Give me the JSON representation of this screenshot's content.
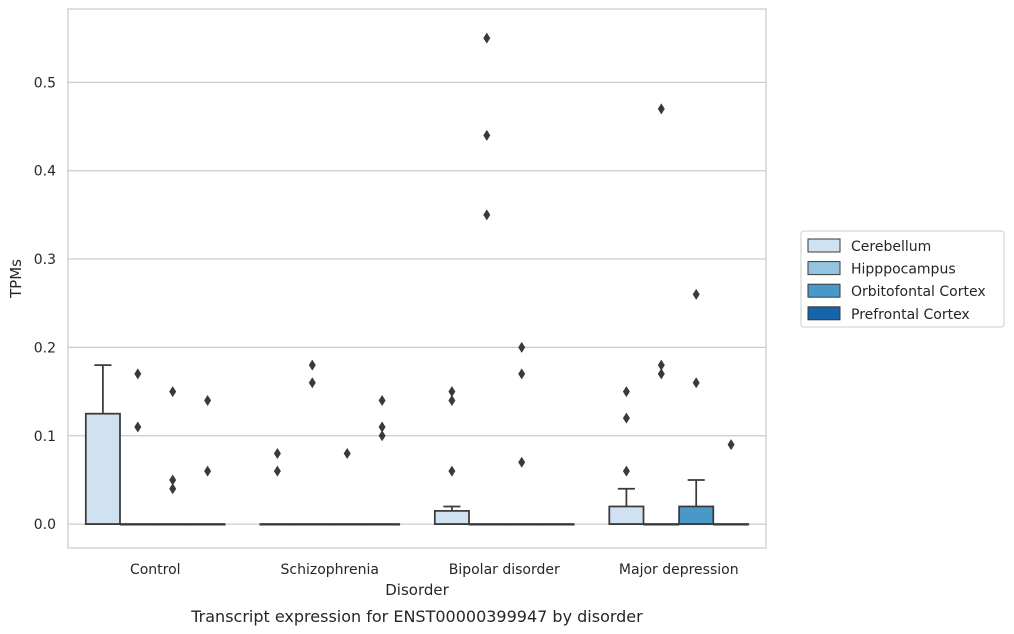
{
  "chart_data": {
    "type": "box",
    "xlabel": "Disorder",
    "ylabel": "TPMs",
    "caption": "Transcript expression for ENST00000399947 by disorder",
    "categories": [
      "Control",
      "Schizophrenia",
      "Bipolar disorder",
      "Major depression"
    ],
    "yticks": [
      "0.0",
      "0.1",
      "0.2",
      "0.3",
      "0.4",
      "0.5"
    ],
    "ylim": [
      -0.027,
      0.583
    ],
    "grid": true,
    "legend_position": "right",
    "series": [
      {
        "name": "Cerebellum",
        "color": "#d0e1f2",
        "boxes": [
          {
            "q1": 0,
            "median": 0,
            "q3": 0.125,
            "whisker_low": 0,
            "whisker_high": 0.18,
            "outliers": []
          },
          {
            "q1": 0,
            "median": 0,
            "q3": 0,
            "whisker_low": 0,
            "whisker_high": 0,
            "outliers": [
              0.06,
              0.08
            ]
          },
          {
            "q1": 0,
            "median": 0,
            "q3": 0.015,
            "whisker_low": 0,
            "whisker_high": 0.02,
            "outliers": [
              0.06,
              0.14,
              0.15
            ]
          },
          {
            "q1": 0,
            "median": 0,
            "q3": 0.02,
            "whisker_low": 0,
            "whisker_high": 0.04,
            "outliers": [
              0.06,
              0.12,
              0.15
            ]
          }
        ]
      },
      {
        "name": "Hipppocampus",
        "color": "#94c4df",
        "boxes": [
          {
            "q1": 0,
            "median": 0,
            "q3": 0,
            "whisker_low": 0,
            "whisker_high": 0,
            "outliers": [
              0.11,
              0.17
            ]
          },
          {
            "q1": 0,
            "median": 0,
            "q3": 0,
            "whisker_low": 0,
            "whisker_high": 0,
            "outliers": [
              0.16,
              0.18
            ]
          },
          {
            "q1": 0,
            "median": 0,
            "q3": 0,
            "whisker_low": 0,
            "whisker_high": 0,
            "outliers": [
              0.35,
              0.44,
              0.55
            ]
          },
          {
            "q1": 0,
            "median": 0,
            "q3": 0,
            "whisker_low": 0,
            "whisker_high": 0,
            "outliers": [
              0.17,
              0.18,
              0.47
            ]
          }
        ]
      },
      {
        "name": "Orbitofontal Cortex",
        "color": "#4a98c9",
        "boxes": [
          {
            "q1": 0,
            "median": 0,
            "q3": 0,
            "whisker_low": 0,
            "whisker_high": 0,
            "outliers": [
              0.04,
              0.05,
              0.15
            ]
          },
          {
            "q1": 0,
            "median": 0,
            "q3": 0,
            "whisker_low": 0,
            "whisker_high": 0,
            "outliers": [
              0.08
            ]
          },
          {
            "q1": 0,
            "median": 0,
            "q3": 0,
            "whisker_low": 0,
            "whisker_high": 0,
            "outliers": [
              0.07,
              0.17,
              0.2
            ]
          },
          {
            "q1": 0,
            "median": 0,
            "q3": 0.02,
            "whisker_low": 0,
            "whisker_high": 0.05,
            "outliers": [
              0.16,
              0.26
            ]
          }
        ]
      },
      {
        "name": "Prefrontal Cortex",
        "color": "#1764ab",
        "boxes": [
          {
            "q1": 0,
            "median": 0,
            "q3": 0,
            "whisker_low": 0,
            "whisker_high": 0,
            "outliers": [
              0.06,
              0.14
            ]
          },
          {
            "q1": 0,
            "median": 0,
            "q3": 0,
            "whisker_low": 0,
            "whisker_high": 0,
            "outliers": [
              0.1,
              0.11,
              0.14
            ]
          },
          {
            "q1": 0,
            "median": 0,
            "q3": 0,
            "whisker_low": 0,
            "whisker_high": 0,
            "outliers": []
          },
          {
            "q1": 0,
            "median": 0,
            "q3": 0,
            "whisker_low": 0,
            "whisker_high": 0,
            "outliers": [
              0.09
            ]
          }
        ]
      }
    ]
  }
}
